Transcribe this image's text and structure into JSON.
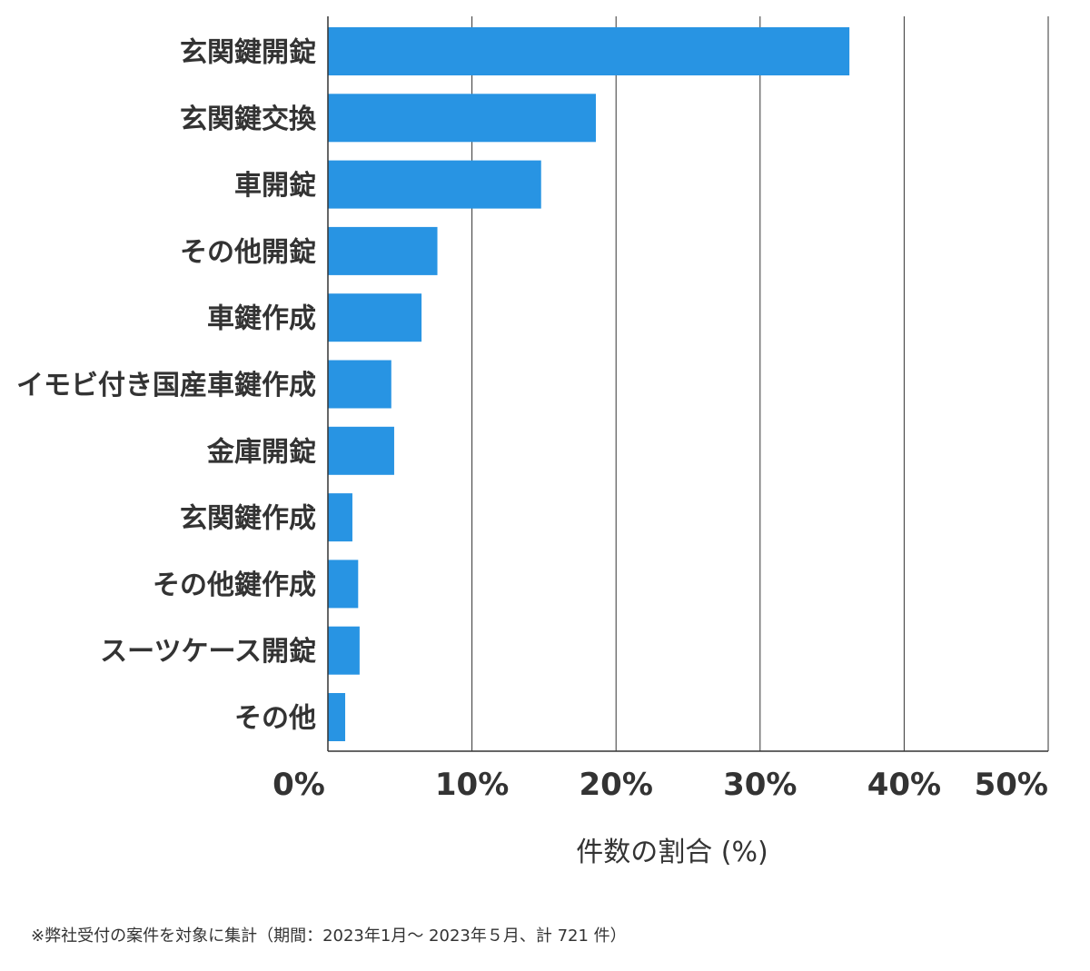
{
  "chart_data": {
    "type": "bar",
    "orientation": "horizontal",
    "categories": [
      "玄関鍵開錠",
      "玄関鍵交換",
      "車開錠",
      "その他開錠",
      "車鍵作成",
      "イモビ付き国産車鍵作成",
      "金庫開錠",
      "玄関鍵作成",
      "その他鍵作成",
      "スーツケース開錠",
      "その他"
    ],
    "values": [
      36.2,
      18.6,
      14.8,
      7.6,
      6.5,
      4.4,
      4.6,
      1.7,
      2.1,
      2.2,
      1.2
    ],
    "xlim": [
      0,
      50
    ],
    "xticks": [
      "0%",
      "10%",
      "20%",
      "30%",
      "40%",
      "50%"
    ],
    "xlabel": "件数の割合 (%)",
    "ylabel": "",
    "title": "",
    "grid": "vertical",
    "bar_color": "#2894e3"
  },
  "footnote": "※弊社受付の案件を対象に集計（期間：2023年1月～ 2023年５月、計 721 件）"
}
